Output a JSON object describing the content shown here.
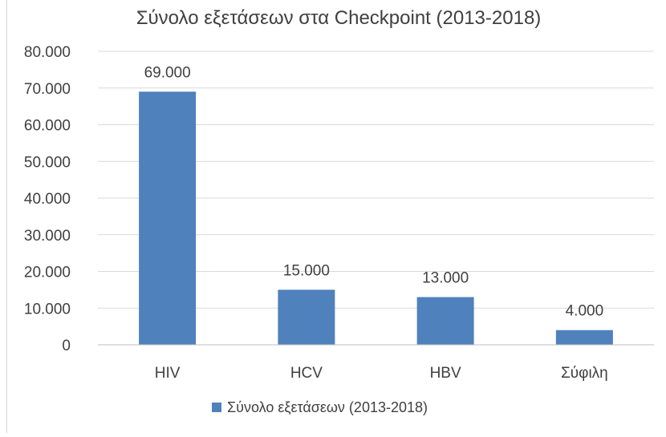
{
  "chart_data": {
    "type": "bar",
    "title": "Σύνολο εξετάσεων στα Checkpoint (2013-2018)",
    "categories": [
      "HIV",
      "HCV",
      "HBV",
      "Σύφιλη"
    ],
    "series": [
      {
        "name": "Σύνολο εξετάσεων (2013-2018)",
        "values": [
          69000,
          15000,
          13000,
          4000
        ],
        "data_labels": [
          "69.000",
          "15.000",
          "13.000",
          "4.000"
        ],
        "color": "#4f81bd"
      }
    ],
    "yticks": [
      {
        "value": 0,
        "label": "0"
      },
      {
        "value": 10000,
        "label": "10.000"
      },
      {
        "value": 20000,
        "label": "20.000"
      },
      {
        "value": 30000,
        "label": "30.000"
      },
      {
        "value": 40000,
        "label": "40.000"
      },
      {
        "value": 50000,
        "label": "50.000"
      },
      {
        "value": 60000,
        "label": "60.000"
      },
      {
        "value": 70000,
        "label": "70.000"
      },
      {
        "value": 80000,
        "label": "80.000"
      }
    ],
    "ylim": [
      0,
      80000
    ],
    "grid": true,
    "legend_position": "bottom",
    "colors": {
      "text": "#404040",
      "grid": "#d9d9d9",
      "axis": "#bfbfbf",
      "frame": "#d9d9d9"
    }
  }
}
